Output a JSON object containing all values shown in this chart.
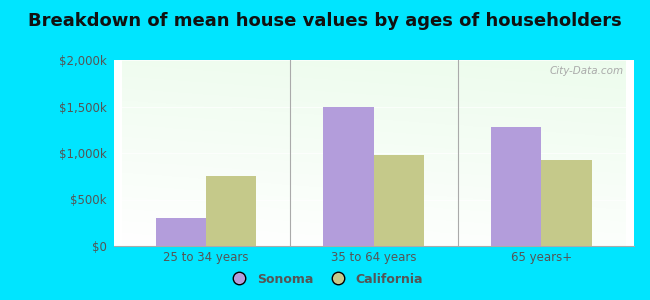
{
  "title": "Breakdown of mean house values by ages of householders",
  "categories": [
    "25 to 34 years",
    "35 to 64 years",
    "65 years+"
  ],
  "sonoma_values": [
    300000,
    1500000,
    1275000
  ],
  "california_values": [
    750000,
    975000,
    925000
  ],
  "sonoma_color": "#b39ddb",
  "california_color": "#c5c98a",
  "background_color": "#00e5ff",
  "ylim": [
    0,
    2000000
  ],
  "yticks": [
    0,
    500000,
    1000000,
    1500000,
    2000000
  ],
  "ytick_labels": [
    "$0",
    "$500k",
    "$1,000k",
    "$1,500k",
    "$2,000k"
  ],
  "bar_width": 0.3,
  "title_fontsize": 13,
  "legend_labels": [
    "Sonoma",
    "California"
  ],
  "watermark": "City-Data.com"
}
